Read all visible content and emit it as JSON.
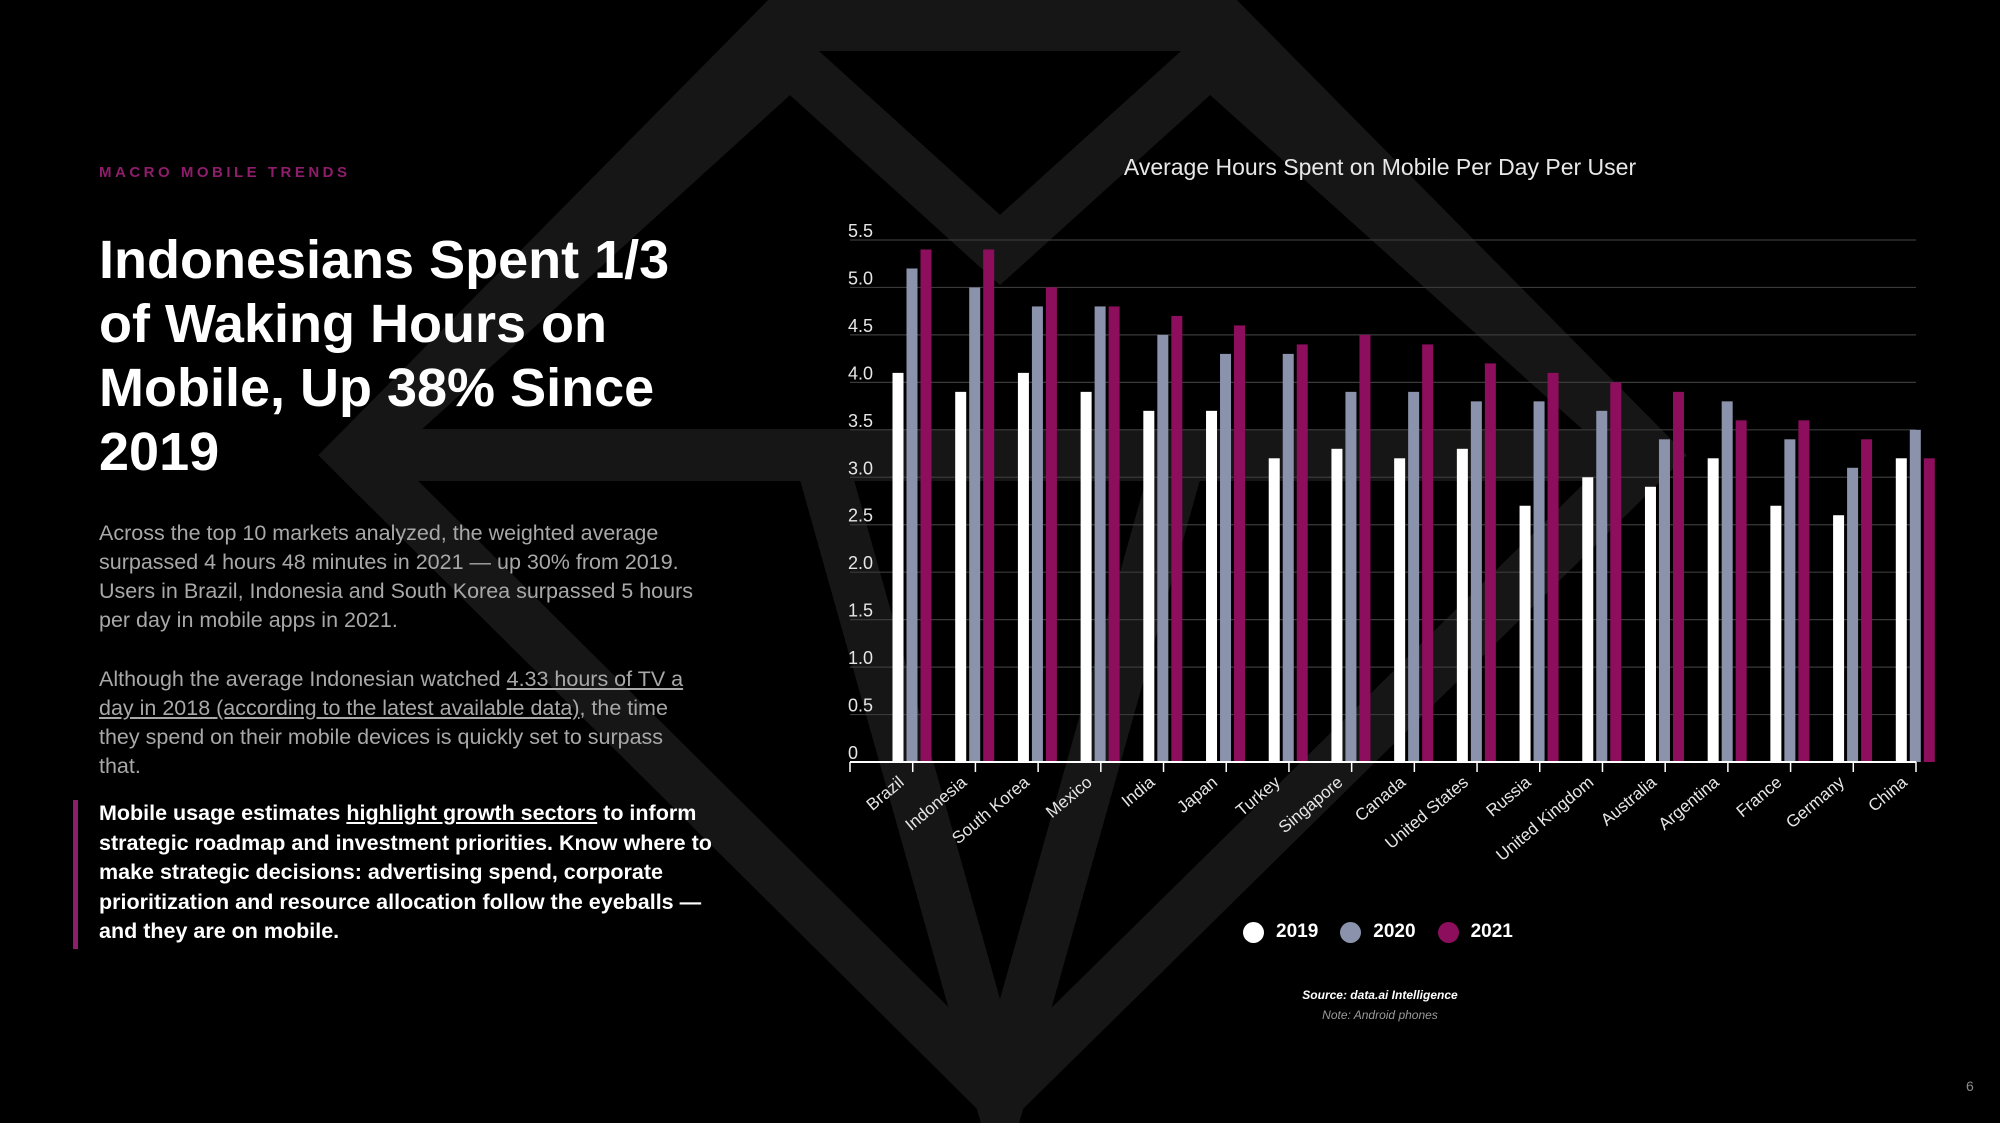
{
  "eyebrow": "MACRO MOBILE TRENDS",
  "headline": "Indonesians Spent 1/3 of Waking Hours on Mobile, Up 38% Since 2019",
  "paragraph1": "Across the top 10 markets analyzed, the weighted average surpassed 4 hours 48 minutes in 2021 — up 30% from 2019. Users in Brazil, Indonesia and South Korea surpassed 5 hours per day in mobile apps in 2021.",
  "paragraph2": {
    "before": "Although the average Indonesian watched ",
    "link": "4.33 hours of TV a day in 2018 (according to the latest available data)",
    "after": ", the time they spend on their mobile devices is quickly set to surpass that."
  },
  "callout": {
    "before": "Mobile usage estimates ",
    "link": "highlight growth sectors",
    "after": " to inform strategic roadmap and investment priorities. Know where to make strategic decisions: advertising spend, corporate prioritization and resource allocation follow the eyeballs — and they are on mobile."
  },
  "source": "Source: data.ai Intelligence",
  "note": "Note: Android phones",
  "page_number": "6",
  "colors": {
    "accent": "#8e1d6b",
    "y2019": "#ffffff",
    "y2020": "#8a93ab",
    "y2021": "#8e0e5e"
  },
  "chart_data": {
    "type": "bar",
    "title": "Average Hours Spent on Mobile Per Day Per User",
    "xlabel": "",
    "ylabel": "",
    "ylim": [
      0,
      5.5
    ],
    "yticks": [
      "0",
      "0.5",
      "1.0",
      "1.5",
      "2.0",
      "2.5",
      "3.0",
      "3.5",
      "4.0",
      "4.5",
      "5.0",
      "5.5"
    ],
    "grid": true,
    "legend_position": "bottom",
    "categories": [
      "Brazil",
      "Indonesia",
      "South Korea",
      "Mexico",
      "India",
      "Japan",
      "Turkey",
      "Singapore",
      "Canada",
      "United States",
      "Russia",
      "United Kingdom",
      "Australia",
      "Argentina",
      "France",
      "Germany",
      "China"
    ],
    "series": [
      {
        "name": "2019",
        "values": [
          4.1,
          3.9,
          4.1,
          3.9,
          3.7,
          3.7,
          3.2,
          3.3,
          3.2,
          3.3,
          2.7,
          3.0,
          2.9,
          3.2,
          2.7,
          2.6,
          3.2
        ]
      },
      {
        "name": "2020",
        "values": [
          5.2,
          5.0,
          4.8,
          4.8,
          4.5,
          4.3,
          4.3,
          3.9,
          3.9,
          3.8,
          3.8,
          3.7,
          3.4,
          3.8,
          3.4,
          3.1,
          3.5
        ]
      },
      {
        "name": "2021",
        "values": [
          5.4,
          5.4,
          5.0,
          4.8,
          4.7,
          4.6,
          4.4,
          4.5,
          4.4,
          4.2,
          4.1,
          4.0,
          3.9,
          3.6,
          3.6,
          3.4,
          3.2
        ]
      }
    ]
  }
}
